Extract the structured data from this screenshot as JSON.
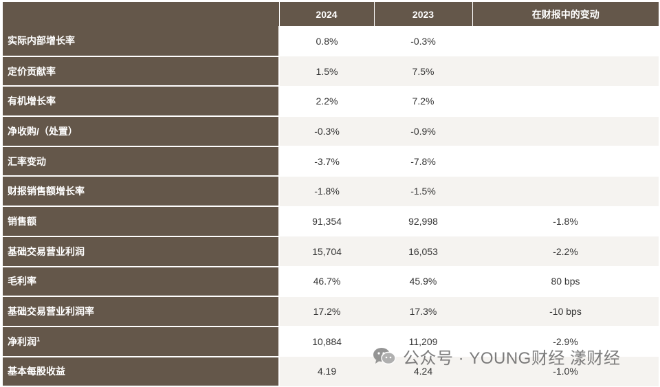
{
  "headers": [
    "",
    "2024",
    "2023",
    "在财报中的变动"
  ],
  "rows": [
    {
      "label": "实际内部增长率",
      "sup": "",
      "y2024": "0.8%",
      "y2023": "-0.3%",
      "change": ""
    },
    {
      "label": "定价贡献率",
      "sup": "",
      "y2024": "1.5%",
      "y2023": "7.5%",
      "change": ""
    },
    {
      "label": "有机增长率",
      "sup": "",
      "y2024": "2.2%",
      "y2023": "7.2%",
      "change": ""
    },
    {
      "label": "净收购/（处置）",
      "sup": "",
      "y2024": "-0.3%",
      "y2023": "-0.9%",
      "change": ""
    },
    {
      "label": "汇率变动",
      "sup": "",
      "y2024": "-3.7%",
      "y2023": "-7.8%",
      "change": ""
    },
    {
      "label": "财报销售额增长率",
      "sup": "",
      "y2024": "-1.8%",
      "y2023": "-1.5%",
      "change": ""
    },
    {
      "label": "销售额",
      "sup": "",
      "y2024": "91,354",
      "y2023": "92,998",
      "change": "-1.8%"
    },
    {
      "label": "基础交易营业利润",
      "sup": "",
      "y2024": "15,704",
      "y2023": "16,053",
      "change": "-2.2%"
    },
    {
      "label": "毛利率",
      "sup": "",
      "y2024": "46.7%",
      "y2023": "45.9%",
      "change": "80 bps"
    },
    {
      "label": "基础交易营业利润率",
      "sup": "",
      "y2024": "17.2%",
      "y2023": "17.3%",
      "change": "-10 bps"
    },
    {
      "label": "净利润",
      "sup": "1",
      "y2024": "10,884",
      "y2023": "11,209",
      "change": "-2.9%"
    },
    {
      "label": "基本每股收益",
      "sup": "",
      "y2024": "4.19",
      "y2023": "4.24",
      "change": "-1.0%"
    }
  ],
  "watermark": {
    "text": "公众号 · YOUNG财经 漾财经",
    "icon": "wechat-icon"
  },
  "colors": {
    "header_bg": "#64574a",
    "label_bg": "#64574a",
    "row_alt_bg": "#f5f3f0"
  }
}
